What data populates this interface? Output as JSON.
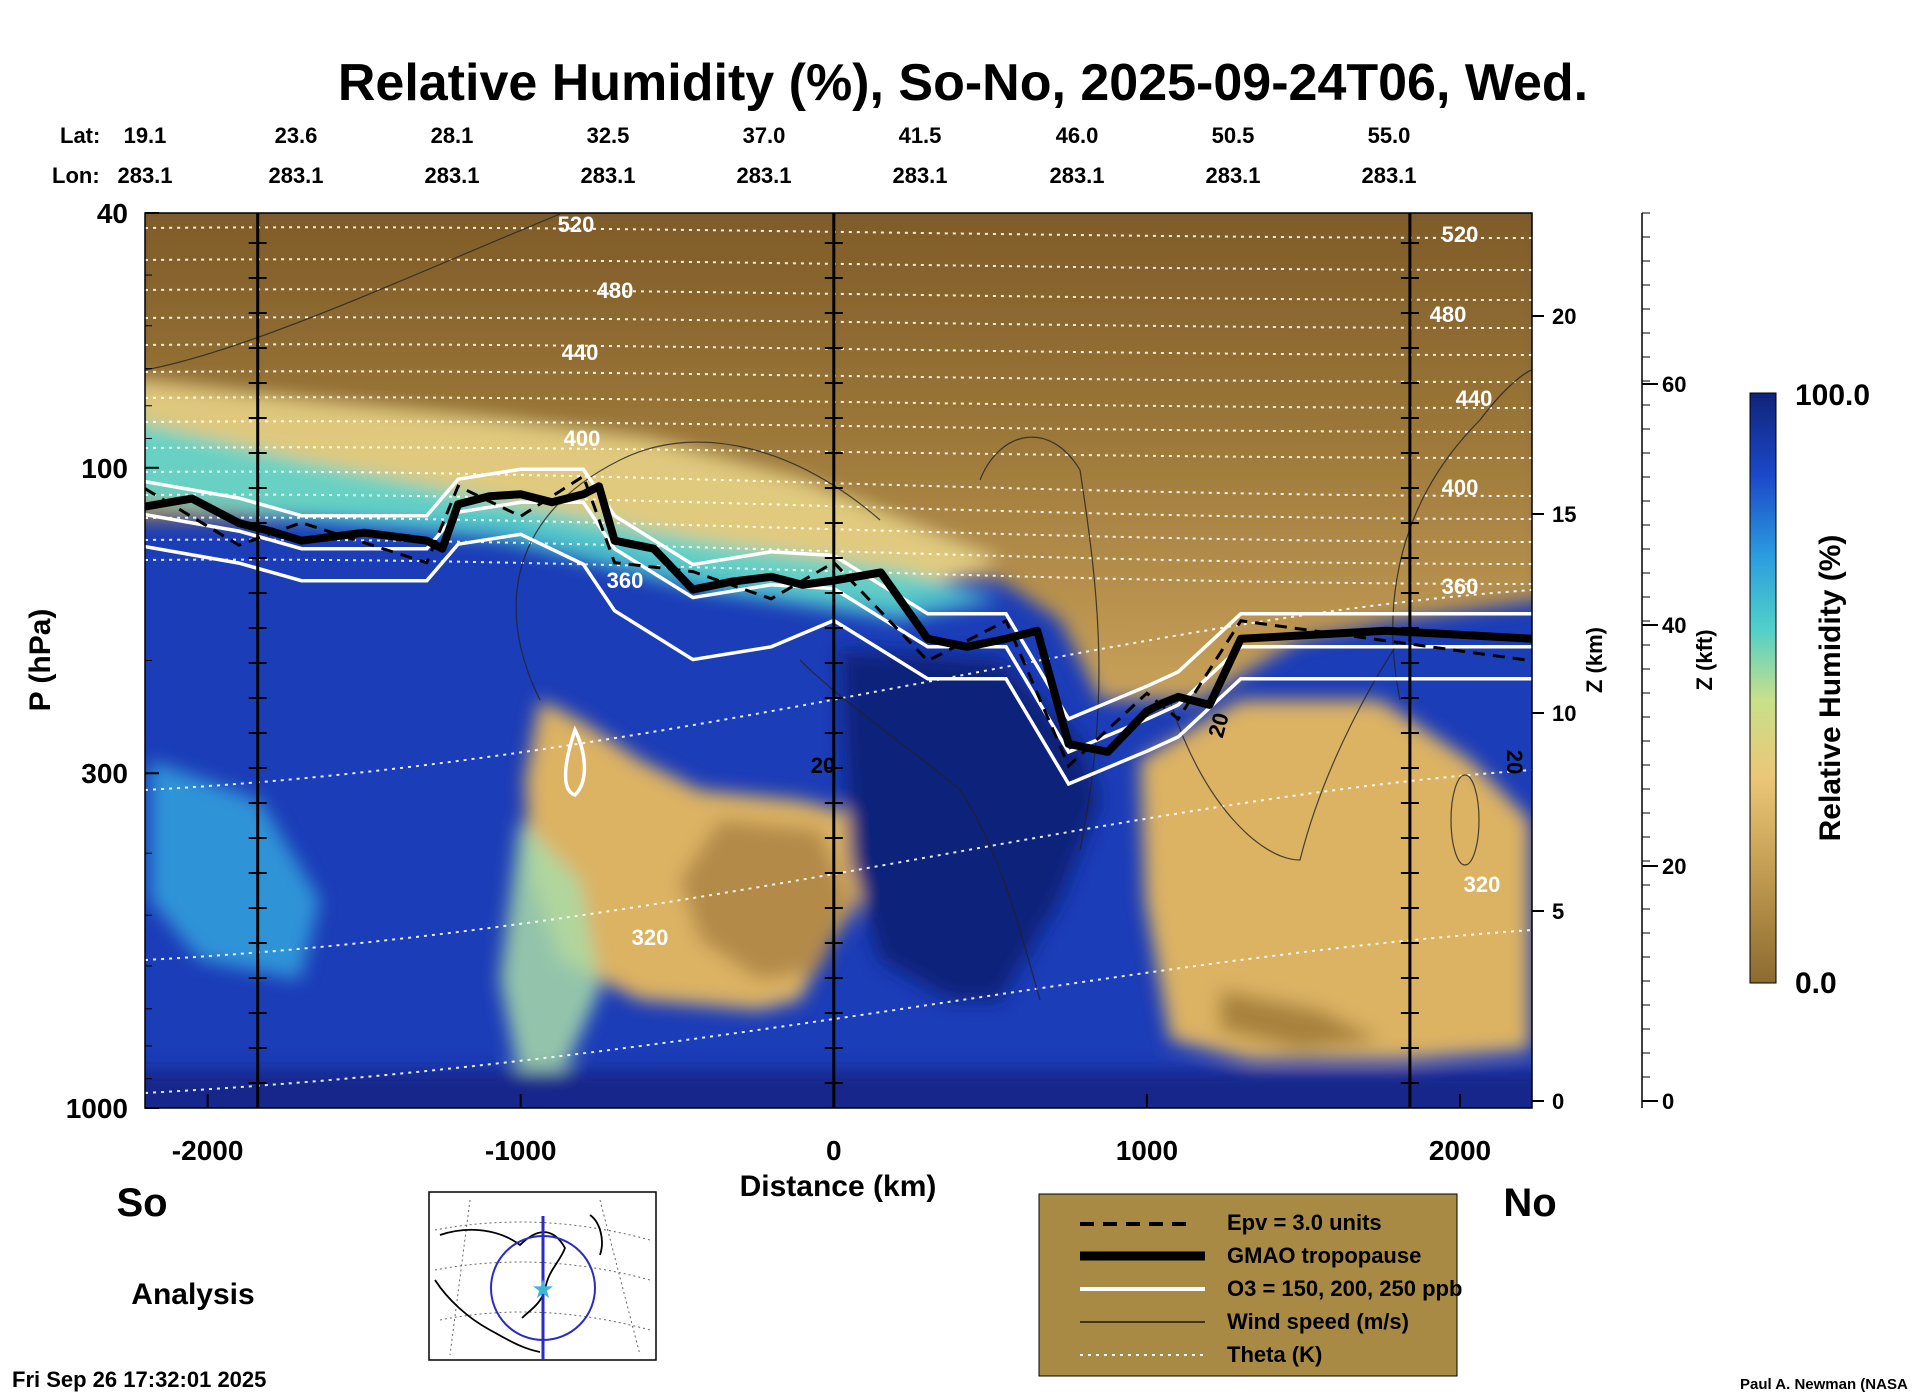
{
  "chart_data": {
    "type": "heatmap",
    "title": "Relative Humidity (%), So-No, 2025-09-24T06, Wed.",
    "xlabel": "Distance (km)",
    "ylabel": "P (hPa)",
    "xlim": [
      -2200,
      2230
    ],
    "xticks": [
      "-2000",
      "-1000",
      "0",
      "1000",
      "2000"
    ],
    "yticks": [
      "40",
      "100",
      "300",
      "1000"
    ],
    "right_axis_z_km": {
      "label": "Z (km)",
      "ticks": [
        "0",
        "5",
        "10",
        "15",
        "20"
      ]
    },
    "right_axis_z_kft": {
      "label": "Z (kft)",
      "ticks": [
        "0",
        "20",
        "40",
        "60"
      ]
    },
    "lat_label": "Lat:",
    "lon_label": "Lon:",
    "lats": [
      "19.1",
      "23.6",
      "28.1",
      "32.5",
      "37.0",
      "41.5",
      "46.0",
      "50.5",
      "55.0"
    ],
    "lons": [
      "283.1",
      "283.1",
      "283.1",
      "283.1",
      "283.1",
      "283.1",
      "283.1",
      "283.1",
      "283.1"
    ],
    "theta_labels": [
      "520",
      "480",
      "440",
      "400",
      "360",
      "320",
      "520",
      "480",
      "440",
      "400",
      "360",
      "320"
    ],
    "wind_labels": [
      "20",
      "20",
      "20"
    ],
    "colorbar": {
      "label": "Relative Humidity (%)",
      "max": "100.0",
      "min": "0.0"
    },
    "tropopause_gmao_hpa": [
      [
        -2200,
        115
      ],
      [
        -1900,
        122
      ],
      [
        -1700,
        130
      ],
      [
        -1300,
        130
      ],
      [
        -1200,
        114
      ],
      [
        -1000,
        110
      ],
      [
        -800,
        110
      ],
      [
        -700,
        130
      ],
      [
        -450,
        155
      ],
      [
        -200,
        148
      ],
      [
        0,
        150
      ],
      [
        300,
        185
      ],
      [
        550,
        185
      ],
      [
        750,
        270
      ],
      [
        1000,
        240
      ],
      [
        1100,
        228
      ],
      [
        1300,
        185
      ],
      [
        2230,
        185
      ]
    ],
    "legend": [
      {
        "label": "Epv = 3.0 units",
        "style": "dashed"
      },
      {
        "label": "GMAO tropopause",
        "style": "thick"
      },
      {
        "label": "O3 = 150, 200, 250 ppb",
        "style": "white"
      },
      {
        "label": "Wind speed (m/s)",
        "style": "thin"
      },
      {
        "label": "Theta (K)",
        "style": "dotted"
      }
    ],
    "colors": {
      "wet": "#10237a",
      "mid": "#2fb8d8",
      "dry": "#8c6a30",
      "legend_bg": "#a88a45"
    }
  },
  "labels": {
    "south": "So",
    "north": "No",
    "analysis": "Analysis",
    "timestamp": "Fri Sep 26 17:32:01 2025",
    "credit": "Paul A. Newman (NASA"
  }
}
